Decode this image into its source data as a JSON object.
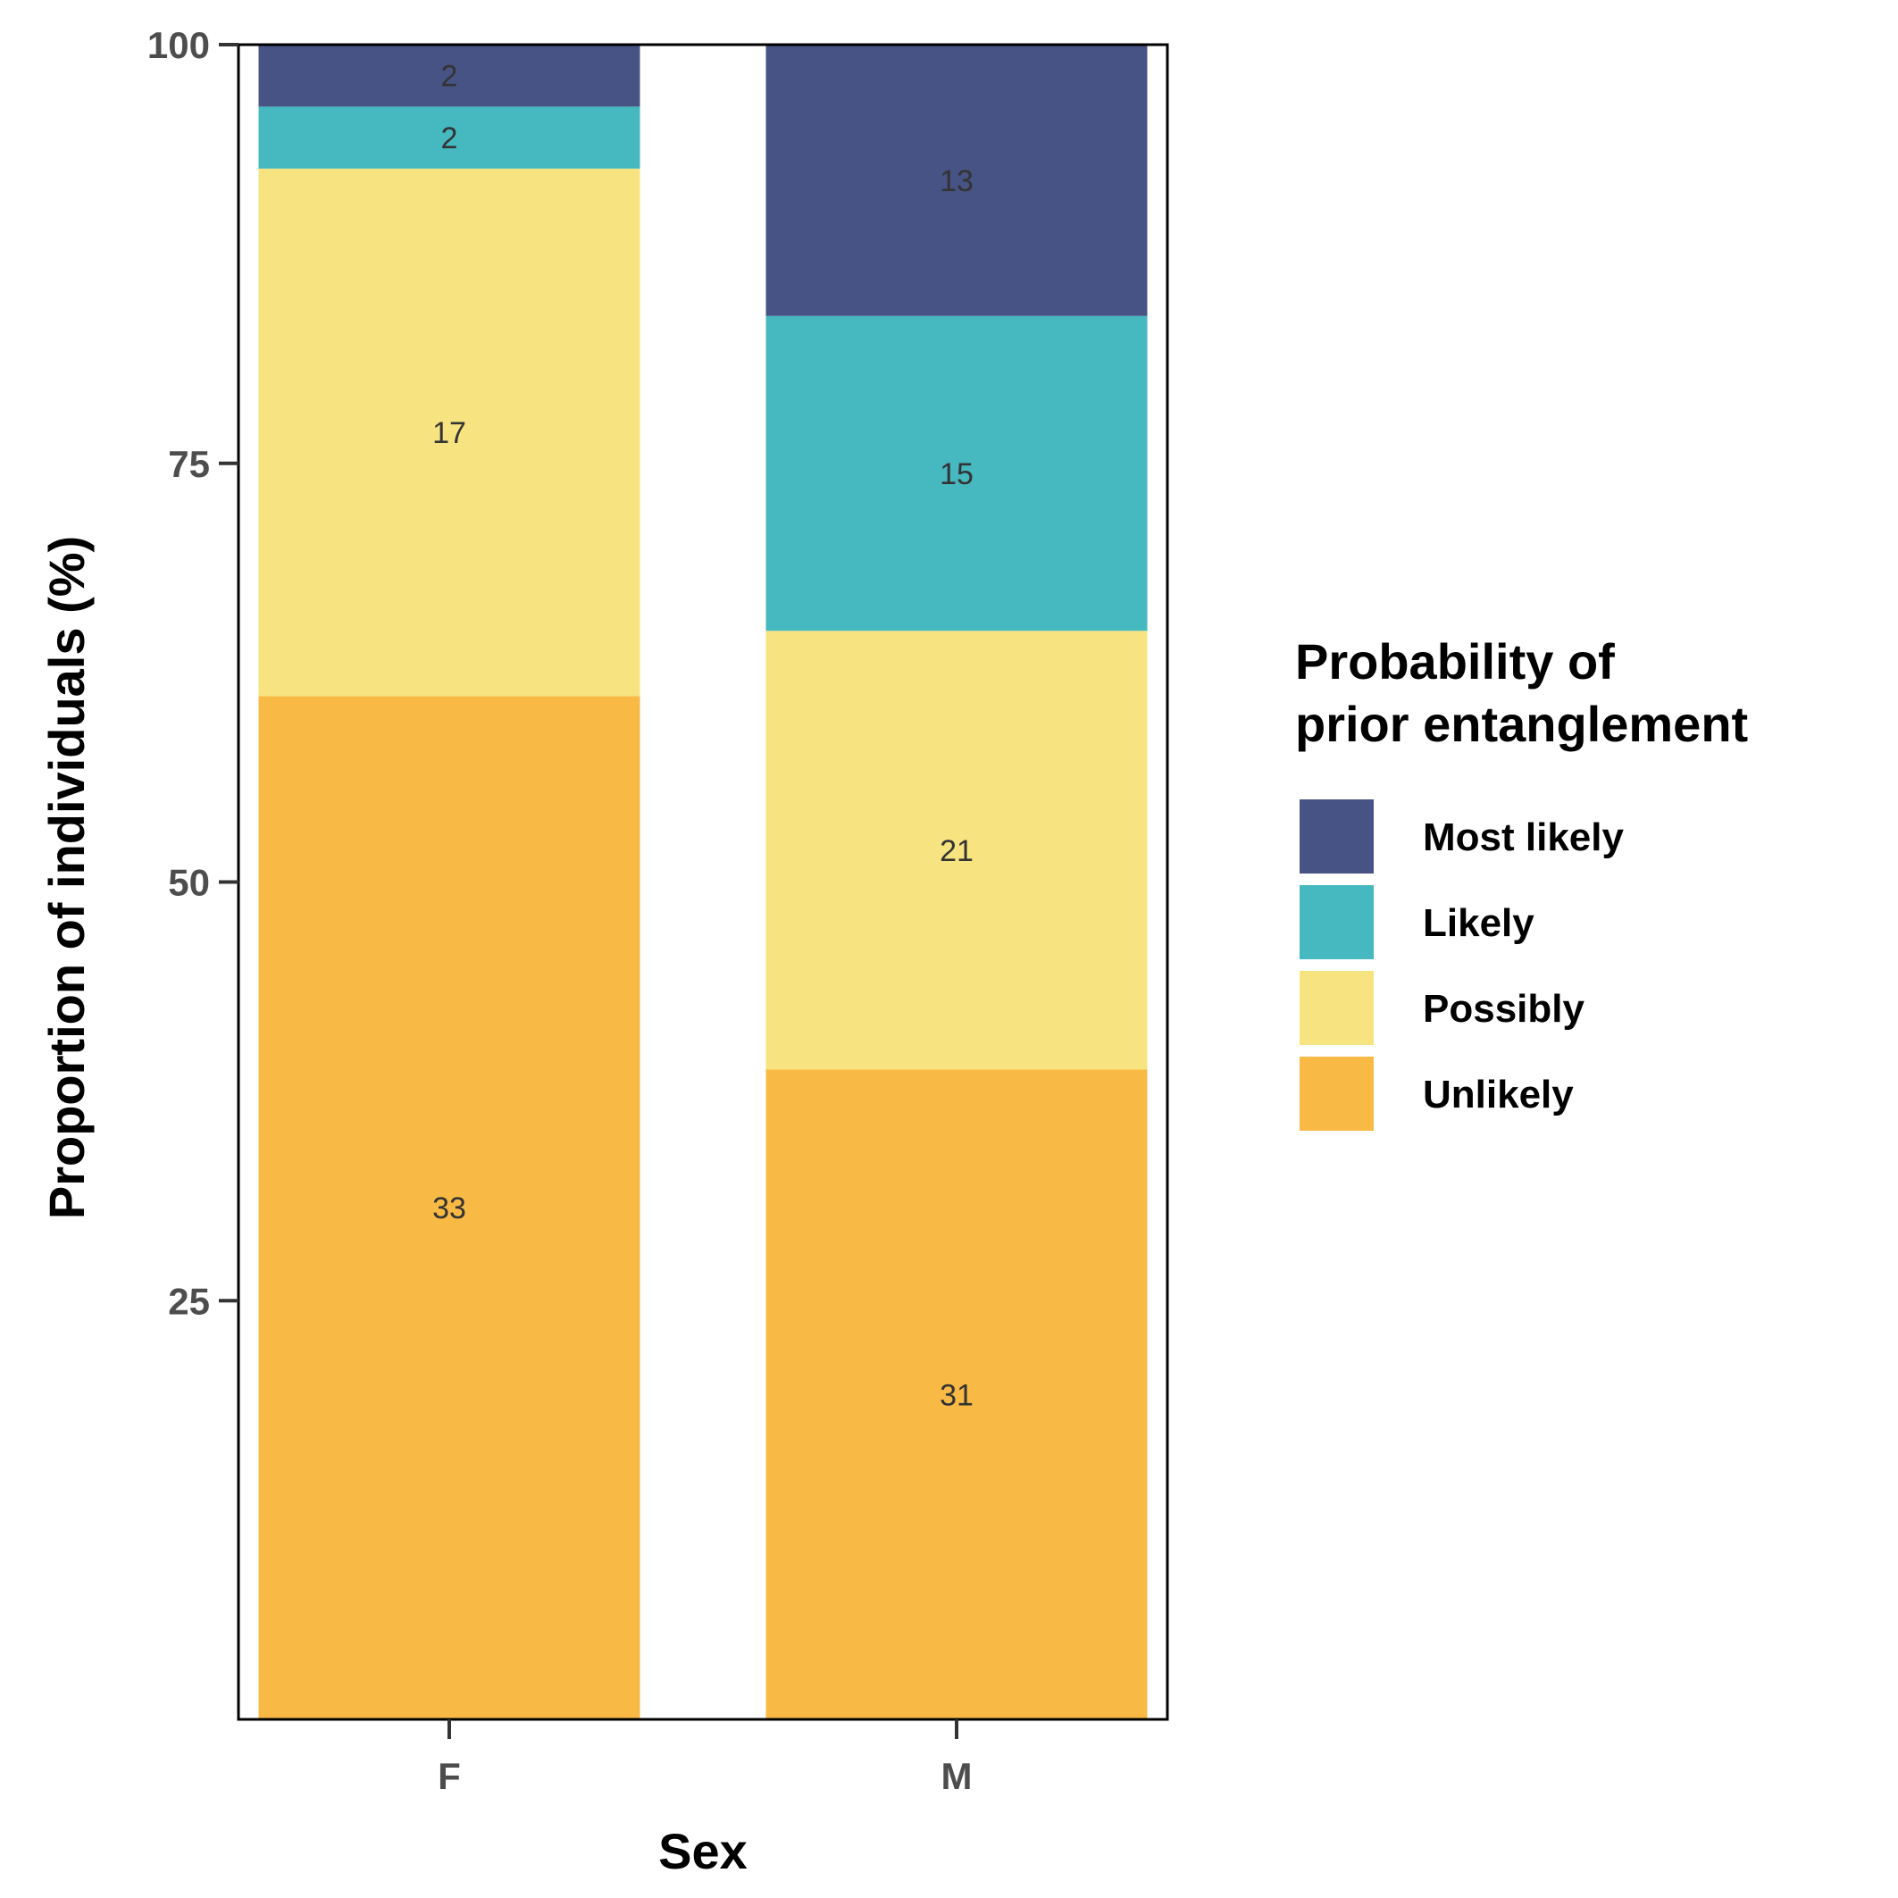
{
  "chart_data": {
    "type": "bar",
    "stacked": true,
    "categories": [
      "F",
      "M"
    ],
    "xlabel": "Sex",
    "ylabel": "Proportion of individuals (%)",
    "ylim": [
      0,
      100
    ],
    "yticks": [
      25,
      50,
      75,
      100
    ],
    "legend": {
      "title_lines": [
        "Probability of",
        "prior entanglement"
      ],
      "placement": "right"
    },
    "series": [
      {
        "name": "Unlikely",
        "color": "#F8BA45",
        "counts": [
          33,
          31
        ],
        "values": [
          61.1,
          38.8
        ]
      },
      {
        "name": "Possibly",
        "color": "#F7E480",
        "counts": [
          17,
          21
        ],
        "values": [
          31.5,
          26.2
        ]
      },
      {
        "name": "Likely",
        "color": "#45B8C0",
        "counts": [
          2,
          15
        ],
        "values": [
          3.7,
          18.8
        ]
      },
      {
        "name": "Most likely",
        "color": "#475385",
        "counts": [
          2,
          13
        ],
        "values": [
          3.7,
          16.2
        ]
      }
    ]
  }
}
